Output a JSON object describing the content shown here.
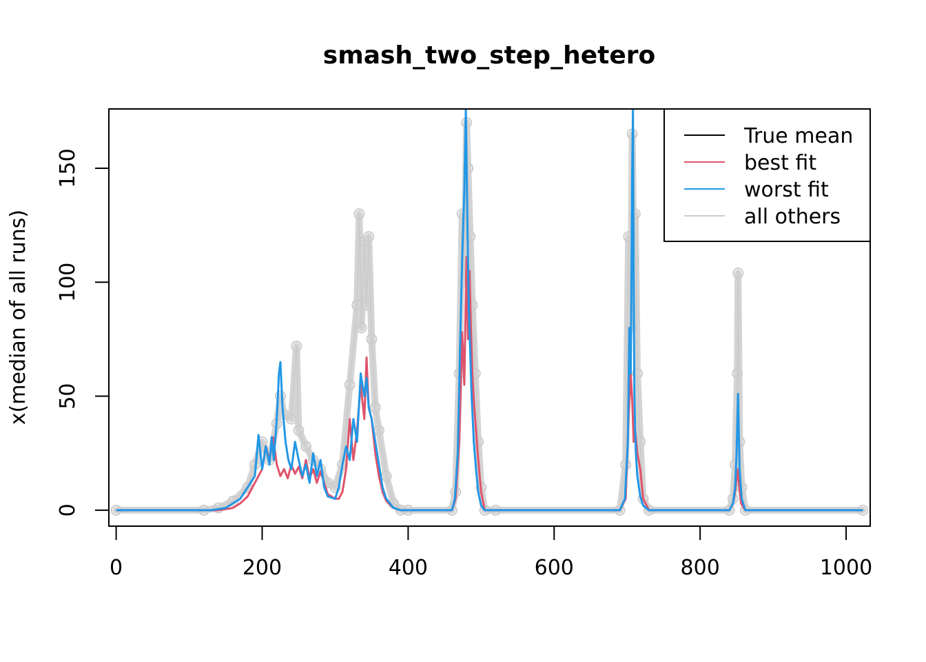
{
  "chart_data": {
    "type": "line",
    "title": "smash_two_step_hetero",
    "xlabel": "",
    "ylabel": "x(median of all runs)",
    "xlim": [
      -10,
      1033
    ],
    "ylim": [
      -7,
      176
    ],
    "x_ticks": [
      0,
      200,
      400,
      600,
      800,
      1000
    ],
    "x_tick_labels": [
      "0",
      "200",
      "400",
      "600",
      "800",
      "1000"
    ],
    "y_ticks": [
      0,
      50,
      100,
      150
    ],
    "y_tick_labels": [
      "0",
      "50",
      "100",
      "150"
    ],
    "legend": {
      "position": "top-right",
      "entries": [
        {
          "label": "True mean",
          "color": "#000000"
        },
        {
          "label": "best fit",
          "color": "#DF536B"
        },
        {
          "label": "worst fit",
          "color": "#2297E6"
        },
        {
          "label": "all others",
          "color": "#CCCCCC"
        }
      ]
    },
    "series": [
      {
        "name": "all others",
        "color": "#CCCCCC",
        "x": [
          0,
          120,
          140,
          160,
          180,
          190,
          200,
          210,
          220,
          225,
          230,
          240,
          247,
          250,
          260,
          270,
          280,
          290,
          300,
          310,
          320,
          330,
          333,
          336,
          340,
          343,
          346,
          350,
          355,
          360,
          370,
          380,
          390,
          400,
          460,
          465,
          470,
          474,
          477,
          480,
          482,
          485,
          488,
          492,
          496,
          500,
          505,
          520,
          690,
          698,
          702,
          705,
          707,
          709,
          711,
          714,
          718,
          722,
          730,
          840,
          845,
          848,
          851,
          852,
          854,
          857,
          862,
          1023
        ],
        "y": [
          0,
          0,
          1,
          4,
          10,
          20,
          30,
          22,
          38,
          50,
          42,
          40,
          72,
          35,
          28,
          22,
          18,
          12,
          10,
          20,
          55,
          90,
          130,
          80,
          118,
          90,
          120,
          75,
          45,
          35,
          15,
          3,
          0,
          0,
          0,
          8,
          60,
          130,
          100,
          170,
          150,
          120,
          90,
          60,
          30,
          10,
          0,
          0,
          0,
          20,
          120,
          80,
          165,
          110,
          130,
          60,
          30,
          5,
          0,
          0,
          5,
          20,
          60,
          104,
          30,
          10,
          0,
          0
        ]
      },
      {
        "name": "best fit",
        "color": "#DF536B",
        "x": [
          0,
          140,
          160,
          170,
          180,
          190,
          200,
          205,
          210,
          215,
          220,
          225,
          230,
          235,
          240,
          245,
          250,
          255,
          260,
          265,
          270,
          275,
          280,
          290,
          300,
          305,
          310,
          315,
          320,
          325,
          330,
          335,
          340,
          343,
          346,
          350,
          355,
          360,
          365,
          370,
          380,
          390,
          400,
          460,
          465,
          470,
          474,
          477,
          480,
          482,
          484,
          486,
          488,
          490,
          493,
          496,
          500,
          505,
          520,
          690,
          698,
          702,
          705,
          707,
          709,
          711,
          714,
          718,
          722,
          730,
          840,
          845,
          848,
          851,
          853,
          856,
          862,
          1023
        ],
        "y": [
          0,
          0,
          1,
          3,
          6,
          12,
          18,
          28,
          22,
          32,
          20,
          15,
          18,
          14,
          20,
          16,
          19,
          14,
          22,
          14,
          18,
          12,
          17,
          7,
          5,
          5,
          8,
          18,
          40,
          22,
          35,
          55,
          40,
          67,
          45,
          40,
          25,
          15,
          8,
          4,
          1,
          0,
          0,
          0,
          5,
          30,
          78,
          55,
          111,
          75,
          105,
          80,
          60,
          48,
          35,
          22,
          8,
          0,
          0,
          0,
          5,
          40,
          60,
          48,
          30,
          35,
          25,
          18,
          5,
          0,
          0,
          3,
          8,
          18,
          12,
          3,
          0,
          0
        ]
      },
      {
        "name": "worst fit",
        "color": "#2297E6",
        "x": [
          0,
          130,
          150,
          160,
          170,
          180,
          190,
          195,
          200,
          205,
          210,
          213,
          216,
          220,
          223,
          225,
          228,
          232,
          236,
          240,
          245,
          250,
          255,
          260,
          265,
          270,
          275,
          280,
          285,
          290,
          300,
          305,
          310,
          315,
          320,
          325,
          330,
          335,
          340,
          343,
          346,
          350,
          355,
          360,
          365,
          370,
          380,
          390,
          400,
          460,
          464,
          468,
          471,
          474,
          477,
          479,
          481,
          483,
          485,
          487,
          490,
          493,
          496,
          500,
          505,
          520,
          690,
          697,
          701,
          703,
          705,
          707,
          708,
          709,
          710,
          711,
          712,
          714,
          718,
          722,
          730,
          840,
          845,
          848,
          850,
          852,
          854,
          857,
          862,
          1023
        ],
        "y": [
          0,
          0,
          1,
          3,
          5,
          10,
          15,
          33,
          18,
          28,
          20,
          32,
          22,
          40,
          60,
          65,
          45,
          30,
          22,
          18,
          30,
          22,
          15,
          20,
          12,
          25,
          15,
          22,
          10,
          6,
          5,
          10,
          20,
          28,
          22,
          40,
          30,
          60,
          50,
          58,
          45,
          40,
          30,
          20,
          10,
          5,
          1,
          0,
          0,
          0,
          5,
          25,
          70,
          110,
          140,
          176,
          130,
          90,
          70,
          50,
          30,
          18,
          8,
          2,
          0,
          0,
          0,
          5,
          30,
          80,
          60,
          150,
          176,
          100,
          50,
          35,
          25,
          15,
          6,
          2,
          0,
          0,
          3,
          10,
          25,
          51,
          18,
          5,
          0,
          0
        ]
      }
    ]
  }
}
